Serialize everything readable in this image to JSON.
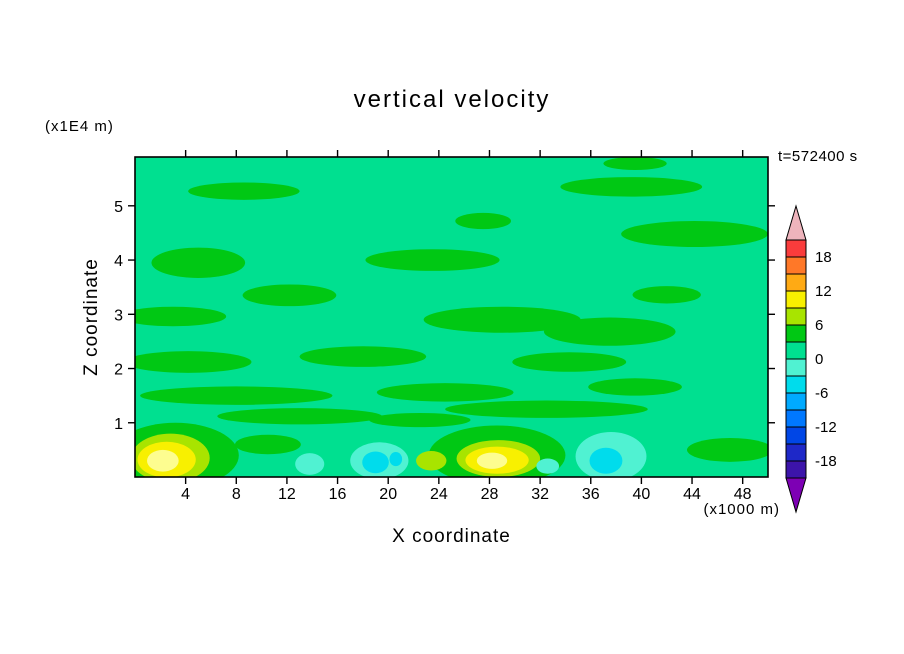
{
  "chart_data": {
    "type": "contour",
    "title": "vertical velocity",
    "timestamp": "t=572400 s",
    "xlabel": "X coordinate",
    "x_units": "(x1000 m)",
    "ylabel": "Z coordinate",
    "y_units": "(x1E4 m)",
    "xlim": [
      0,
      50
    ],
    "ylim": [
      0,
      5.9
    ],
    "xticks": [
      4,
      8,
      12,
      16,
      20,
      24,
      28,
      32,
      36,
      40,
      44,
      48
    ],
    "yticks": [
      1,
      2,
      3,
      4,
      5
    ],
    "contour_interval": 3,
    "palette": {
      "bg": "#00e090",
      "green": "#00c814",
      "yellowgreen": "#a8e400",
      "yellow": "#f8f000",
      "brightyellow": "#fdfd90",
      "paleaqua": "#50f2d2",
      "cyan": "#00dcec"
    },
    "colorbar": {
      "labels": [
        "18",
        "12",
        "6",
        "0",
        "-6",
        "-12",
        "-18"
      ],
      "segment_colors_top_to_bottom": [
        "#fa3c3c",
        "#ff7828",
        "#ffaa14",
        "#f8f000",
        "#a8e400",
        "#00c814",
        "#00e090",
        "#50f2d2",
        "#00dcec",
        "#00aaff",
        "#0078ff",
        "#0046e6",
        "#1e28c8",
        "#3c14aa"
      ],
      "top_arrow_color": "#eeb4bc",
      "bottom_arrow_color": "#7d00b4"
    },
    "features": [
      {
        "x": 8.6,
        "y": 5.27,
        "rx": 4.4,
        "ry": 0.16,
        "c": "green"
      },
      {
        "x": 39.2,
        "y": 5.35,
        "rx": 5.6,
        "ry": 0.18,
        "c": "green"
      },
      {
        "x": 39.5,
        "y": 5.78,
        "rx": 2.5,
        "ry": 0.12,
        "c": "green"
      },
      {
        "x": 27.5,
        "y": 4.72,
        "rx": 2.2,
        "ry": 0.15,
        "c": "green"
      },
      {
        "x": 44.2,
        "y": 4.48,
        "rx": 5.8,
        "ry": 0.24,
        "c": "green"
      },
      {
        "x": 5.0,
        "y": 3.95,
        "rx": 3.7,
        "ry": 0.28,
        "c": "green"
      },
      {
        "x": 23.5,
        "y": 4.0,
        "rx": 5.3,
        "ry": 0.2,
        "c": "green"
      },
      {
        "x": 12.2,
        "y": 3.35,
        "rx": 3.7,
        "ry": 0.2,
        "c": "green"
      },
      {
        "x": 42.0,
        "y": 3.36,
        "rx": 2.7,
        "ry": 0.16,
        "c": "green"
      },
      {
        "x": 29.0,
        "y": 2.9,
        "rx": 6.2,
        "ry": 0.24,
        "c": "green"
      },
      {
        "x": 37.5,
        "y": 2.68,
        "rx": 5.2,
        "ry": 0.26,
        "c": "green"
      },
      {
        "x": 3.0,
        "y": 2.96,
        "rx": 4.2,
        "ry": 0.18,
        "c": "green"
      },
      {
        "x": 4.2,
        "y": 2.12,
        "rx": 5.0,
        "ry": 0.2,
        "c": "green"
      },
      {
        "x": 18.0,
        "y": 2.22,
        "rx": 5.0,
        "ry": 0.19,
        "c": "green"
      },
      {
        "x": 34.3,
        "y": 2.12,
        "rx": 4.5,
        "ry": 0.18,
        "c": "green"
      },
      {
        "x": 8.0,
        "y": 1.5,
        "rx": 7.6,
        "ry": 0.17,
        "c": "green"
      },
      {
        "x": 24.5,
        "y": 1.56,
        "rx": 5.4,
        "ry": 0.17,
        "c": "green"
      },
      {
        "x": 39.5,
        "y": 1.66,
        "rx": 3.7,
        "ry": 0.16,
        "c": "green"
      },
      {
        "x": 13.0,
        "y": 1.12,
        "rx": 6.5,
        "ry": 0.15,
        "c": "green"
      },
      {
        "x": 22.5,
        "y": 1.05,
        "rx": 4.0,
        "ry": 0.13,
        "c": "green"
      },
      {
        "x": 32.5,
        "y": 1.25,
        "rx": 8.0,
        "ry": 0.16,
        "c": "green"
      },
      {
        "x": 3.2,
        "y": 0.4,
        "rx": 5.0,
        "ry": 0.6,
        "c": "green"
      },
      {
        "x": 28.6,
        "y": 0.4,
        "rx": 5.4,
        "ry": 0.55,
        "c": "green"
      },
      {
        "x": 47.0,
        "y": 0.5,
        "rx": 3.4,
        "ry": 0.22,
        "c": "green"
      },
      {
        "x": 10.5,
        "y": 0.6,
        "rx": 2.6,
        "ry": 0.18,
        "c": "green"
      },
      {
        "x": 2.8,
        "y": 0.35,
        "rx": 3.1,
        "ry": 0.45,
        "c": "yellowgreen"
      },
      {
        "x": 28.7,
        "y": 0.34,
        "rx": 3.3,
        "ry": 0.34,
        "c": "yellowgreen"
      },
      {
        "x": 23.4,
        "y": 0.3,
        "rx": 1.2,
        "ry": 0.18,
        "c": "yellowgreen"
      },
      {
        "x": 2.5,
        "y": 0.32,
        "rx": 2.3,
        "ry": 0.33,
        "c": "yellow"
      },
      {
        "x": 28.6,
        "y": 0.31,
        "rx": 2.5,
        "ry": 0.25,
        "c": "yellow"
      },
      {
        "x": 2.2,
        "y": 0.3,
        "rx": 1.25,
        "ry": 0.2,
        "c": "brightyellow"
      },
      {
        "x": 28.2,
        "y": 0.3,
        "rx": 1.2,
        "ry": 0.15,
        "c": "brightyellow"
      },
      {
        "x": 37.6,
        "y": 0.38,
        "rx": 2.8,
        "ry": 0.45,
        "c": "paleaqua"
      },
      {
        "x": 19.3,
        "y": 0.3,
        "rx": 2.3,
        "ry": 0.34,
        "c": "paleaqua"
      },
      {
        "x": 13.8,
        "y": 0.24,
        "rx": 1.15,
        "ry": 0.2,
        "c": "paleaqua"
      },
      {
        "x": 32.6,
        "y": 0.2,
        "rx": 0.9,
        "ry": 0.14,
        "c": "paleaqua"
      },
      {
        "x": 37.2,
        "y": 0.3,
        "rx": 1.3,
        "ry": 0.24,
        "c": "cyan"
      },
      {
        "x": 19.0,
        "y": 0.27,
        "rx": 1.05,
        "ry": 0.2,
        "c": "cyan"
      },
      {
        "x": 20.6,
        "y": 0.33,
        "rx": 0.5,
        "ry": 0.13,
        "c": "cyan"
      }
    ]
  }
}
